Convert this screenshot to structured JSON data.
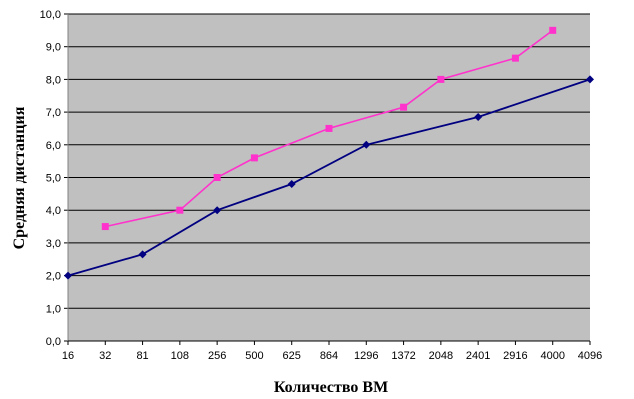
{
  "chart_data": {
    "type": "line",
    "title": "",
    "xlabel": "Количество ВМ",
    "ylabel": "Средняя дистанция",
    "categories": [
      "16",
      "32",
      "81",
      "108",
      "256",
      "500",
      "625",
      "864",
      "1296",
      "1372",
      "2048",
      "2401",
      "2916",
      "4000",
      "4096"
    ],
    "yticks": [
      "0,0",
      "1,0",
      "2,0",
      "3,0",
      "4,0",
      "5,0",
      "6,0",
      "7,0",
      "8,0",
      "9,0",
      "10,0"
    ],
    "ylim": [
      0,
      10
    ],
    "grid": true,
    "legend": "none",
    "series": [
      {
        "color": "#ff33cc",
        "marker": "square",
        "values": [
          null,
          3.5,
          null,
          4.0,
          5.0,
          5.6,
          null,
          6.5,
          null,
          7.15,
          8.0,
          null,
          8.65,
          9.5,
          null
        ]
      },
      {
        "color": "#000080",
        "marker": "diamond",
        "values": [
          2.0,
          null,
          2.65,
          null,
          4.0,
          null,
          4.8,
          null,
          6.0,
          null,
          null,
          6.85,
          null,
          null,
          8.0
        ]
      }
    ],
    "plot_background": "#c0c0c0",
    "grid_color": "#000000"
  }
}
